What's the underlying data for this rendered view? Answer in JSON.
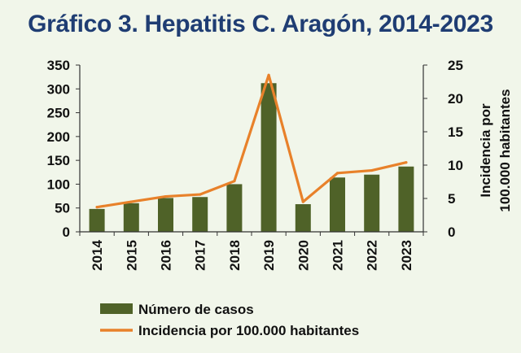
{
  "chart_data": {
    "type": "bar",
    "title": "Gráfico 3. Hepatitis C. Aragón, 2014-2023",
    "categories": [
      "2014",
      "2015",
      "2016",
      "2017",
      "2018",
      "2019",
      "2020",
      "2021",
      "2022",
      "2023"
    ],
    "series": [
      {
        "name": "Número de casos",
        "type": "bar",
        "axis": "left",
        "color": "#4f6228",
        "values": [
          48,
          60,
          71,
          73,
          100,
          312,
          58,
          114,
          120,
          137
        ]
      },
      {
        "name": "Incidencia por 100.000 habitantes",
        "type": "line",
        "axis": "right",
        "color": "#e8812a",
        "values": [
          3.7,
          4.5,
          5.3,
          5.6,
          7.6,
          23.5,
          4.5,
          8.8,
          9.2,
          10.4
        ]
      }
    ],
    "y_left": {
      "label": "",
      "ylim": [
        0,
        350
      ],
      "ticks": [
        "0",
        "50",
        "100",
        "150",
        "200",
        "250",
        "300",
        "350"
      ]
    },
    "y_right": {
      "label": "Incidencia por 100.000 habitantes",
      "label_lines": [
        "Incidencia por",
        "100.000 habitantes"
      ],
      "ylim": [
        0,
        25
      ],
      "ticks": [
        "0",
        "5",
        "10",
        "15",
        "20",
        "25"
      ]
    },
    "grid": false,
    "legend_position": "bottom",
    "colors": {
      "background": "#f1f6ea",
      "title": "#1f3d73",
      "bars": "#4f6228",
      "line": "#e8812a",
      "axis": "#333333"
    }
  }
}
